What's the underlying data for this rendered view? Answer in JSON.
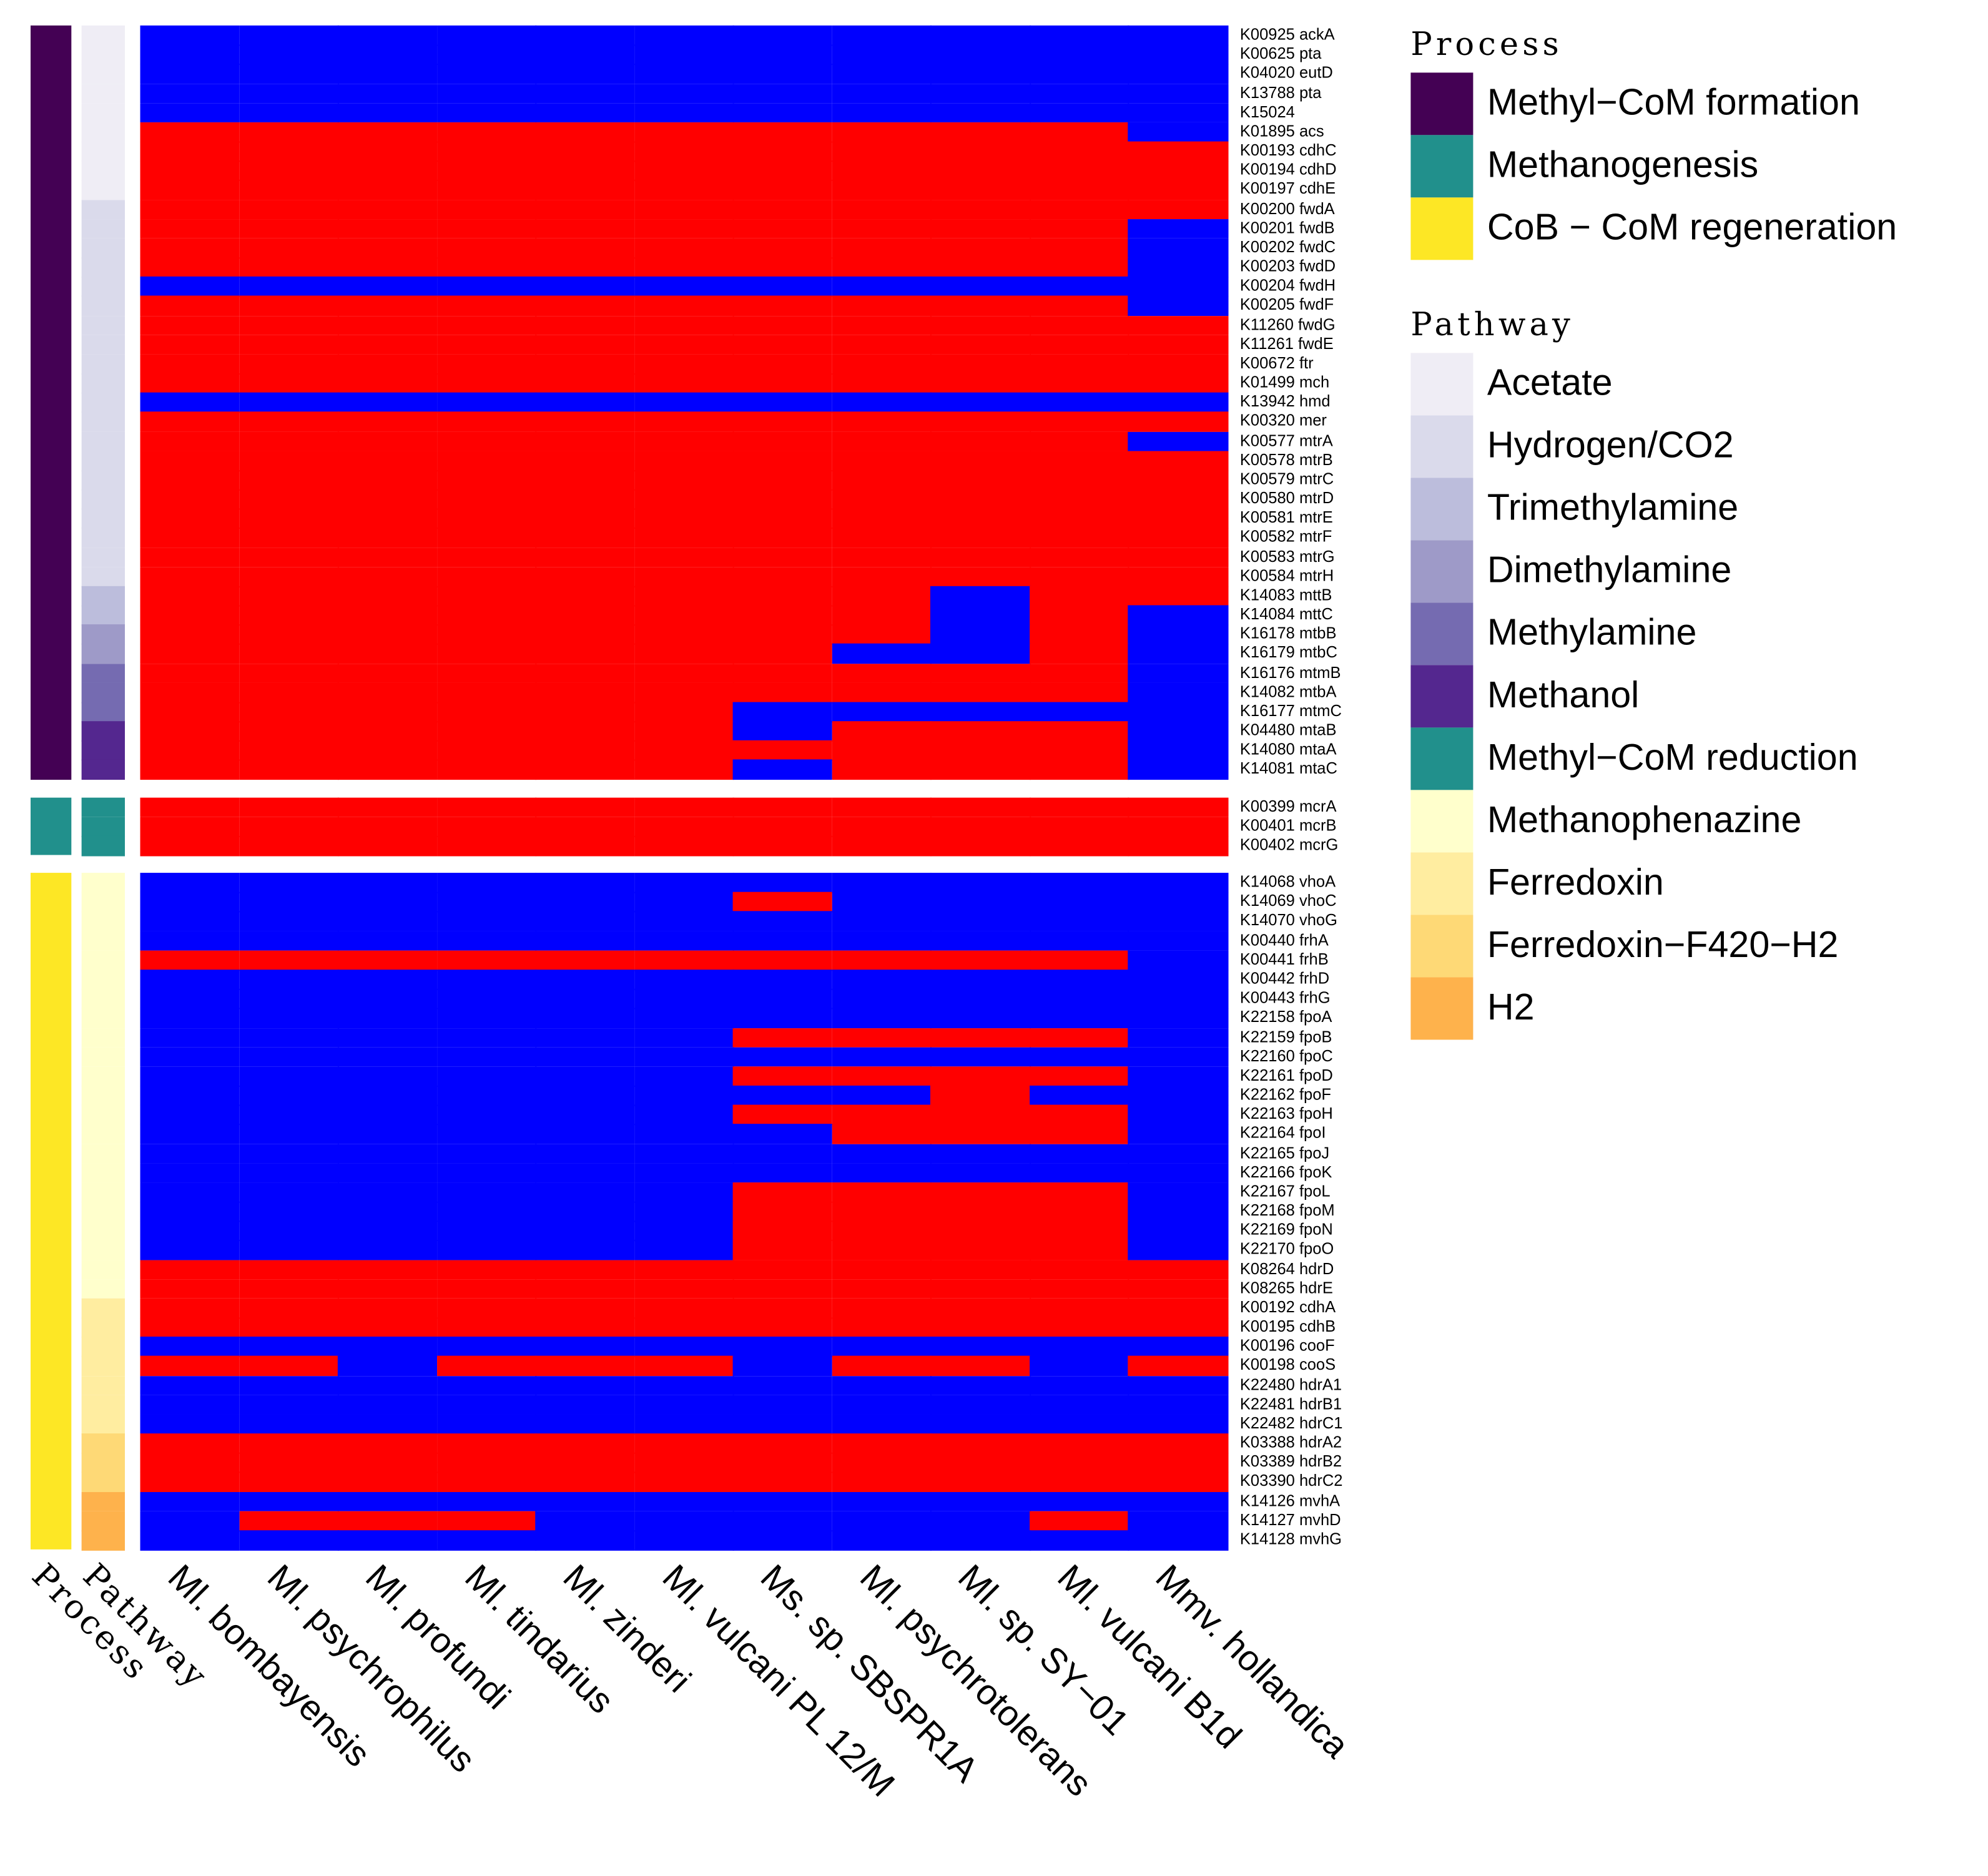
{
  "chart_data": {
    "type": "heatmap",
    "value_colors": {
      "1": "#FF0000",
      "0": "#0000FF"
    },
    "columns": [
      "Ml. bombayensis",
      "Ml. psychrophilus",
      "Ml. profundi",
      "Ml. tindarius",
      "Ml. zinderi",
      "Ml. vulcani PL 12/M",
      "Ms. sp. SBSPR1A",
      "Ml. psychrotolerans",
      "Ml. sp. SY−01",
      "Ml. vulcani B1d",
      "Mmv. hollandica"
    ],
    "annotation_labels": {
      "process": "Process",
      "pathway": "Pathway"
    },
    "sections": [
      {
        "process": "Methyl−CoM formation",
        "rows": [
          {
            "label": "K00925 ackA",
            "pathway": "Acetate",
            "values": "00000000000"
          },
          {
            "label": "K00625 pta",
            "pathway": "Acetate",
            "values": "00000000000"
          },
          {
            "label": "K04020 eutD",
            "pathway": "Acetate",
            "values": "00000000000"
          },
          {
            "label": "K13788 pta",
            "pathway": "Acetate",
            "values": "00000000000"
          },
          {
            "label": "K15024",
            "pathway": "Acetate",
            "values": "00000000000"
          },
          {
            "label": "K01895 acs",
            "pathway": "Acetate",
            "values": "11111111110"
          },
          {
            "label": "K00193 cdhC",
            "pathway": "Acetate",
            "values": "11111111111"
          },
          {
            "label": "K00194 cdhD",
            "pathway": "Acetate",
            "values": "11111111111"
          },
          {
            "label": "K00197 cdhE",
            "pathway": "Acetate",
            "values": "11111111111"
          },
          {
            "label": "K00200 fwdA",
            "pathway": "Hydrogen/CO2",
            "values": "11111111111"
          },
          {
            "label": "K00201 fwdB",
            "pathway": "Hydrogen/CO2",
            "values": "11111111110"
          },
          {
            "label": "K00202 fwdC",
            "pathway": "Hydrogen/CO2",
            "values": "11111111110"
          },
          {
            "label": "K00203 fwdD",
            "pathway": "Hydrogen/CO2",
            "values": "11111111110"
          },
          {
            "label": "K00204 fwdH",
            "pathway": "Hydrogen/CO2",
            "values": "00000000000"
          },
          {
            "label": "K00205 fwdF",
            "pathway": "Hydrogen/CO2",
            "values": "11111111110"
          },
          {
            "label": "K11260 fwdG",
            "pathway": "Hydrogen/CO2",
            "values": "11111111111"
          },
          {
            "label": "K11261 fwdE",
            "pathway": "Hydrogen/CO2",
            "values": "11111111111"
          },
          {
            "label": "K00672 ftr",
            "pathway": "Hydrogen/CO2",
            "values": "11111111111"
          },
          {
            "label": "K01499 mch",
            "pathway": "Hydrogen/CO2",
            "values": "11111111111"
          },
          {
            "label": "K13942 hmd",
            "pathway": "Hydrogen/CO2",
            "values": "00000000000"
          },
          {
            "label": "K00320 mer",
            "pathway": "Hydrogen/CO2",
            "values": "11111111111"
          },
          {
            "label": "K00577 mtrA",
            "pathway": "Hydrogen/CO2",
            "values": "11111111110"
          },
          {
            "label": "K00578 mtrB",
            "pathway": "Hydrogen/CO2",
            "values": "11111111111"
          },
          {
            "label": "K00579 mtrC",
            "pathway": "Hydrogen/CO2",
            "values": "11111111111"
          },
          {
            "label": "K00580 mtrD",
            "pathway": "Hydrogen/CO2",
            "values": "11111111111"
          },
          {
            "label": "K00581 mtrE",
            "pathway": "Hydrogen/CO2",
            "values": "11111111111"
          },
          {
            "label": "K00582 mtrF",
            "pathway": "Hydrogen/CO2",
            "values": "11111111111"
          },
          {
            "label": "K00583 mtrG",
            "pathway": "Hydrogen/CO2",
            "values": "11111111111"
          },
          {
            "label": "K00584 mtrH",
            "pathway": "Hydrogen/CO2",
            "values": "11111111111"
          },
          {
            "label": "K14083 mttB",
            "pathway": "Trimethylamine",
            "values": "11111111011"
          },
          {
            "label": "K14084 mttC",
            "pathway": "Trimethylamine",
            "values": "11111111010"
          },
          {
            "label": "K16178 mtbB",
            "pathway": "Dimethylamine",
            "values": "11111111010"
          },
          {
            "label": "K16179 mtbC",
            "pathway": "Dimethylamine",
            "values": "11111110010"
          },
          {
            "label": "K16176 mtmB",
            "pathway": "Methylamine",
            "values": "11111111110"
          },
          {
            "label": "K14082 mtbA",
            "pathway": "Methylamine",
            "values": "11111111110"
          },
          {
            "label": "K16177 mtmC",
            "pathway": "Methylamine",
            "values": "11111100000"
          },
          {
            "label": "K04480 mtaB",
            "pathway": "Methanol",
            "values": "11111101110"
          },
          {
            "label": "K14080 mtaA",
            "pathway": "Methanol",
            "values": "11111111110"
          },
          {
            "label": "K14081 mtaC",
            "pathway": "Methanol",
            "values": "11111101110"
          }
        ]
      },
      {
        "process": "Methanogenesis",
        "rows": [
          {
            "label": "K00399 mcrA",
            "pathway": "Methyl−CoM reduction",
            "values": "11111111111"
          },
          {
            "label": "K00401 mcrB",
            "pathway": "Methyl−CoM reduction",
            "values": "11111111111"
          },
          {
            "label": "K00402 mcrG",
            "pathway": "Methyl−CoM reduction",
            "values": "11111111111"
          }
        ]
      },
      {
        "process": "CoB − CoM regeneration",
        "rows": [
          {
            "label": "K14068 vhoA",
            "pathway": "Methanophenazine",
            "values": "00000000000"
          },
          {
            "label": "K14069 vhoC",
            "pathway": "Methanophenazine",
            "values": "00000010000"
          },
          {
            "label": "K14070 vhoG",
            "pathway": "Methanophenazine",
            "values": "00000000000"
          },
          {
            "label": "K00440 frhA",
            "pathway": "Methanophenazine",
            "values": "00000000000"
          },
          {
            "label": "K00441 frhB",
            "pathway": "Methanophenazine",
            "values": "11111111110"
          },
          {
            "label": "K00442 frhD",
            "pathway": "Methanophenazine",
            "values": "00000000000"
          },
          {
            "label": "K00443 frhG",
            "pathway": "Methanophenazine",
            "values": "00000000000"
          },
          {
            "label": "K22158 fpoA",
            "pathway": "Methanophenazine",
            "values": "00000000000"
          },
          {
            "label": "K22159 fpoB",
            "pathway": "Methanophenazine",
            "values": "00000011110"
          },
          {
            "label": "K22160 fpoC",
            "pathway": "Methanophenazine",
            "values": "00000000000"
          },
          {
            "label": "K22161 fpoD",
            "pathway": "Methanophenazine",
            "values": "00000011110"
          },
          {
            "label": "K22162 fpoF",
            "pathway": "Methanophenazine",
            "values": "00000000100"
          },
          {
            "label": "K22163 fpoH",
            "pathway": "Methanophenazine",
            "values": "00000011110"
          },
          {
            "label": "K22164 fpoI",
            "pathway": "Methanophenazine",
            "values": "00000001110"
          },
          {
            "label": "K22165 fpoJ",
            "pathway": "Methanophenazine",
            "values": "00000000000"
          },
          {
            "label": "K22166 fpoK",
            "pathway": "Methanophenazine",
            "values": "00000000000"
          },
          {
            "label": "K22167 fpoL",
            "pathway": "Methanophenazine",
            "values": "00000011110"
          },
          {
            "label": "K22168 fpoM",
            "pathway": "Methanophenazine",
            "values": "00000011110"
          },
          {
            "label": "K22169 fpoN",
            "pathway": "Methanophenazine",
            "values": "00000011110"
          },
          {
            "label": "K22170 fpoO",
            "pathway": "Methanophenazine",
            "values": "00000011110"
          },
          {
            "label": "K08264 hdrD",
            "pathway": "Methanophenazine",
            "values": "11111111111"
          },
          {
            "label": "K08265 hdrE",
            "pathway": "Methanophenazine",
            "values": "11111111111"
          },
          {
            "label": "K00192 cdhA",
            "pathway": "Ferredoxin",
            "values": "11111111111"
          },
          {
            "label": "K00195 cdhB",
            "pathway": "Ferredoxin",
            "values": "11111111111"
          },
          {
            "label": "K00196 cooF",
            "pathway": "Ferredoxin",
            "values": "00000000000"
          },
          {
            "label": "K00198 cooS",
            "pathway": "Ferredoxin",
            "values": "11011101101"
          },
          {
            "label": "K22480 hdrA1",
            "pathway": "Ferredoxin",
            "values": "00000000000"
          },
          {
            "label": "K22481 hdrB1",
            "pathway": "Ferredoxin",
            "values": "00000000000"
          },
          {
            "label": "K22482 hdrC1",
            "pathway": "Ferredoxin",
            "values": "00000000000"
          },
          {
            "label": "K03388 hdrA2",
            "pathway": "Ferredoxin−F420−H2",
            "values": "11111111111"
          },
          {
            "label": "K03389 hdrB2",
            "pathway": "Ferredoxin−F420−H2",
            "values": "11111111111"
          },
          {
            "label": "K03390 hdrC2",
            "pathway": "Ferredoxin−F420−H2",
            "values": "11111111111"
          },
          {
            "label": "K14126 mvhA",
            "pathway": "H2",
            "values": "00000000000"
          },
          {
            "label": "K14127 mvhD",
            "pathway": "H2",
            "values": "01110000010"
          },
          {
            "label": "K14128 mvhG",
            "pathway": "H2",
            "values": "00000000000"
          }
        ]
      }
    ],
    "legends": [
      {
        "title": "Process",
        "items": [
          {
            "label": "Methyl−CoM formation",
            "color": "#440154"
          },
          {
            "label": "Methanogenesis",
            "color": "#21908C"
          },
          {
            "label": "CoB − CoM regeneration",
            "color": "#FDE725"
          }
        ]
      },
      {
        "title": "Pathway",
        "items": [
          {
            "label": "Acetate",
            "color": "#EFEDF5"
          },
          {
            "label": "Hydrogen/CO2",
            "color": "#DADAEB"
          },
          {
            "label": "Trimethylamine",
            "color": "#BCBDDC"
          },
          {
            "label": "Dimethylamine",
            "color": "#9E9AC8"
          },
          {
            "label": "Methylamine",
            "color": "#756BB1"
          },
          {
            "label": "Methanol",
            "color": "#54278F"
          },
          {
            "label": "Methyl−CoM reduction",
            "color": "#21908C"
          },
          {
            "label": "Methanophenazine",
            "color": "#FFFFCC"
          },
          {
            "label": "Ferredoxin",
            "color": "#FFEDA0"
          },
          {
            "label": "Ferredoxin−F420−H2",
            "color": "#FED976"
          },
          {
            "label": "H2",
            "color": "#FEB24C"
          }
        ]
      }
    ]
  }
}
